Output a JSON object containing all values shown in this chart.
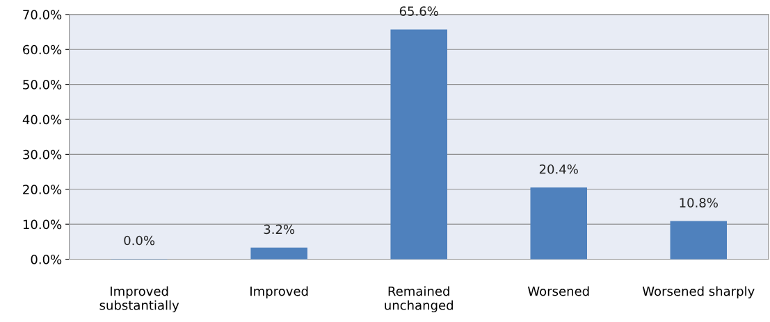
{
  "chart_data": {
    "type": "bar",
    "categories": [
      "Improved\nsubstantially",
      "Improved",
      "Remained\nunchanged",
      "Worsened",
      "Worsened sharply"
    ],
    "values": [
      0.0,
      3.2,
      65.6,
      20.4,
      10.8
    ],
    "value_labels": [
      "0.0%",
      "3.2%",
      "65.6%",
      "20.4%",
      "10.8%"
    ],
    "color": "#4f81bd",
    "ylim": [
      0,
      70
    ],
    "yticks": [
      {
        "value": 0,
        "label": "0.0%"
      },
      {
        "value": 10,
        "label": "10.0%"
      },
      {
        "value": 20,
        "label": "20.0%"
      },
      {
        "value": 30,
        "label": "30.0%"
      },
      {
        "value": 40,
        "label": "40.0%"
      },
      {
        "value": 50,
        "label": "50.0%"
      },
      {
        "value": 60,
        "label": "60.0%"
      },
      {
        "value": 70,
        "label": "70.0%"
      }
    ],
    "grid": "y",
    "legend": false
  }
}
